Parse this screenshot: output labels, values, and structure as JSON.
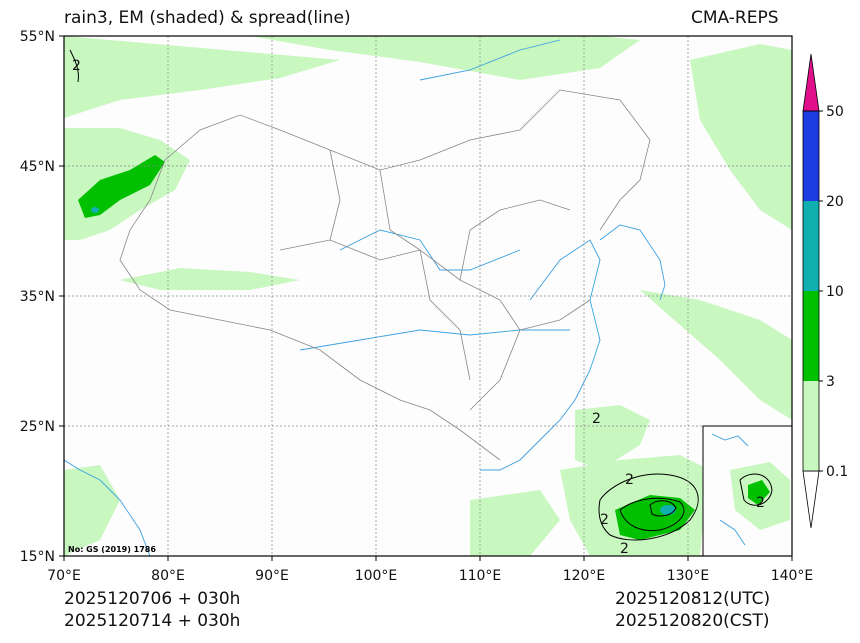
{
  "header": {
    "title_left": "rain3, EM (shaded) & spread(line)",
    "title_right": "CMA-REPS"
  },
  "map": {
    "lon_ticks": [
      "70°E",
      "80°E",
      "90°E",
      "100°E",
      "110°E",
      "120°E",
      "130°E",
      "140°E"
    ],
    "lat_ticks": [
      "55°N",
      "45°N",
      "35°N",
      "25°N",
      "15°N"
    ],
    "note": "No: GS (2019) 1786",
    "contour_labels": [
      "2",
      "2",
      "2",
      "2",
      "2",
      "2"
    ]
  },
  "colorbar": {
    "levels": [
      "0.1",
      "3",
      "10",
      "20",
      "50"
    ],
    "colors": [
      "#ffffff",
      "#c8f7c0",
      "#00c000",
      "#10b0b0",
      "#1c3ce0",
      "#e0108c"
    ]
  },
  "footer": {
    "init_utc": "2025120706  +  030h",
    "init_cst": "2025120714  +  030h",
    "valid_utc": "2025120812(UTC)",
    "valid_cst": "2025120820(CST)"
  }
}
